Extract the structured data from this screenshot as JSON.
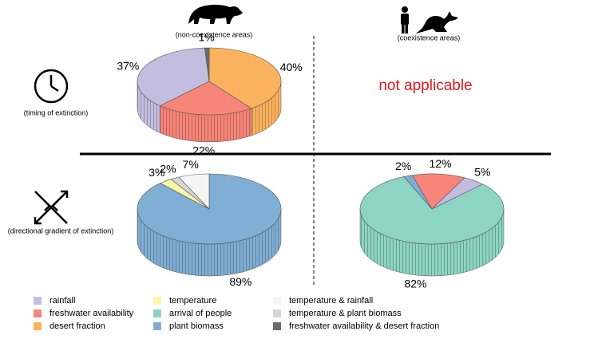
{
  "chart_data": [
    {
      "type": "pie",
      "categories": [
        "desert fraction",
        "freshwater availability",
        "rainfall",
        "freshwater availability & desert fraction"
      ],
      "values": [
        40,
        22,
        37,
        1
      ],
      "value_labels": [
        "40%",
        "22%",
        "37%",
        "1%"
      ],
      "colors": [
        "#fbb25e",
        "#f7857a",
        "#c3bde0",
        "#6b6b6b"
      ]
    },
    {
      "type": "pie",
      "categories": [
        "plant biomass",
        "temperature",
        "temperature & plant biomass",
        "temperature & rainfall"
      ],
      "values": [
        89,
        3,
        2,
        7
      ],
      "value_labels": [
        "89%",
        "3%",
        "2%",
        "7%"
      ],
      "colors": [
        "#80aed4",
        "#fbf7a6",
        "#d6d6d6",
        "#f5f5f5"
      ]
    },
    {
      "type": "pie",
      "categories": [
        "rainfall",
        "arrival of people",
        "plant biomass",
        "freshwater availability"
      ],
      "values": [
        5,
        82,
        2,
        12
      ],
      "value_labels": [
        "5%",
        "82%",
        "2%",
        "12%"
      ],
      "colors": [
        "#c3bde0",
        "#8dd4c4",
        "#80aed4",
        "#f7857a"
      ]
    }
  ],
  "columns": [
    "(non-coexistence areas)",
    "(coexistence areas)"
  ],
  "rows": [
    "(timing of extinction)",
    "(directional gradient of extinction)"
  ],
  "not_applicable": "not applicable",
  "legend": [
    {
      "name": "rainfall",
      "color": "#c3bde0"
    },
    {
      "name": "freshwater availability",
      "color": "#f7857a"
    },
    {
      "name": "desert fraction",
      "color": "#fbb25e"
    },
    {
      "name": "temperature",
      "color": "#fbf7a6"
    },
    {
      "name": "arrival of people",
      "color": "#8dd4c4"
    },
    {
      "name": "plant biomass",
      "color": "#80aed4"
    },
    {
      "name": "temperature & rainfall",
      "color": "#f5f5f5"
    },
    {
      "name": "temperature & plant biomass",
      "color": "#d6d6d6"
    },
    {
      "name": "freshwater availability & desert fraction",
      "color": "#6b6b6b"
    }
  ]
}
